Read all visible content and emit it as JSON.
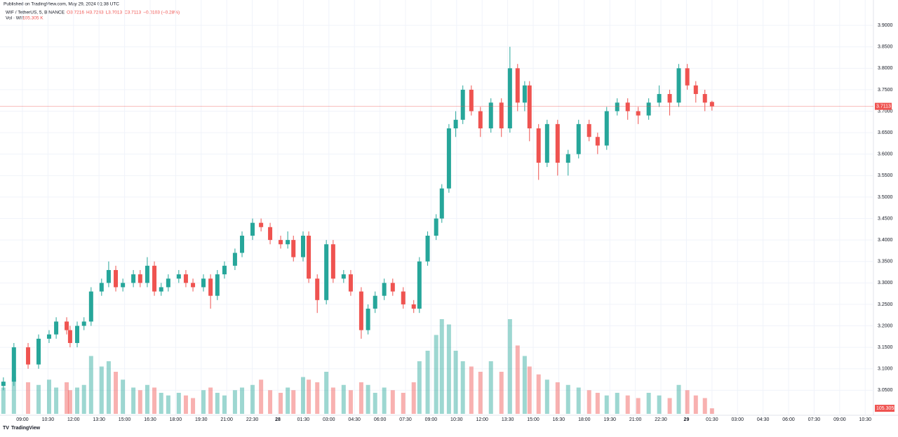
{
  "published": "Published on TradingView.com, May 29, 2024 01:38 UTC",
  "branding": "TradingView",
  "chart_data": {
    "type": "candlestick",
    "symbol": "WIF / TetherUS, 5, BINANCE",
    "ohlc_legend": [
      "O3.7216",
      "H3.7243",
      "L3.7013",
      "C3.7113",
      "−0.0103 (−0.28%)"
    ],
    "volume_title": "Vol · WIF",
    "volume_legend": "105.305 K",
    "up_color": "#26a69a",
    "down_color": "#ef5350",
    "grid": true,
    "x": [
      473,
      510,
      560,
      597,
      634,
      659,
      696,
      708,
      733,
      757,
      782,
      819,
      844,
      869,
      894,
      931,
      955,
      980,
      1005,
      1029,
      1054,
      1091,
      1116,
      1141,
      1178,
      1203,
      1227,
      1252,
      1289,
      1314,
      1351,
      1381,
      1413,
      1450,
      1475,
      1495,
      1529,
      1549,
      1579,
      1611,
      1635,
      1672,
      1697,
      1734,
      1758,
      1783,
      1815,
      1845,
      1882,
      1919,
      1939,
      1968,
      1998,
      2018,
      2043,
      2067,
      2092,
      2122,
      2154,
      2191,
      2228,
      2258,
      2285,
      2310,
      2327,
      2359,
      2389,
      2426,
      2463,
      2500,
      2537,
      2567,
      2599,
      2636,
      2673,
      2710,
      2747,
      2784,
      2821,
      2853,
      2883,
      2913,
      2945,
      2970
    ],
    "open": [
      3.06,
      3.07,
      3.15,
      3.11,
      3.17,
      3.18,
      3.21,
      3.19,
      3.16,
      3.2,
      3.21,
      3.28,
      3.3,
      3.33,
      3.29,
      3.3,
      3.32,
      3.3,
      3.34,
      3.28,
      3.29,
      3.31,
      3.32,
      3.3,
      3.29,
      3.31,
      3.27,
      3.32,
      3.34,
      3.37,
      3.41,
      3.44,
      3.43,
      3.4,
      3.39,
      3.4,
      3.36,
      3.41,
      3.31,
      3.26,
      3.39,
      3.31,
      3.32,
      3.28,
      3.19,
      3.24,
      3.27,
      3.3,
      3.28,
      3.25,
      3.24,
      3.35,
      3.41,
      3.45,
      3.52,
      3.66,
      3.68,
      3.75,
      3.7,
      3.66,
      3.72,
      3.66,
      3.8,
      3.72,
      3.76,
      3.66,
      3.58,
      3.67,
      3.58,
      3.6,
      3.67,
      3.64,
      3.62,
      3.7,
      3.72,
      3.7,
      3.69,
      3.72,
      3.74,
      3.72,
      3.8,
      3.76,
      3.74,
      3.7216
    ],
    "high": [
      3.08,
      3.16,
      3.16,
      3.18,
      3.19,
      3.22,
      3.22,
      3.2,
      3.21,
      3.22,
      3.29,
      3.31,
      3.35,
      3.34,
      3.31,
      3.33,
      3.33,
      3.36,
      3.35,
      3.3,
      3.32,
      3.33,
      3.33,
      3.31,
      3.32,
      3.32,
      3.33,
      3.35,
      3.38,
      3.42,
      3.45,
      3.45,
      3.44,
      3.41,
      3.42,
      3.41,
      3.42,
      3.42,
      3.32,
      3.4,
      3.4,
      3.33,
      3.33,
      3.29,
      3.25,
      3.28,
      3.31,
      3.31,
      3.29,
      3.26,
      3.36,
      3.42,
      3.46,
      3.53,
      3.67,
      3.7,
      3.76,
      3.76,
      3.71,
      3.73,
      3.73,
      3.85,
      3.81,
      3.77,
      3.77,
      3.67,
      3.68,
      3.68,
      3.61,
      3.68,
      3.68,
      3.65,
      3.71,
      3.73,
      3.73,
      3.71,
      3.73,
      3.76,
      3.75,
      3.81,
      3.81,
      3.77,
      3.75,
      3.7243
    ],
    "low": [
      3.05,
      3.06,
      3.1,
      3.1,
      3.16,
      3.17,
      3.18,
      3.15,
      3.15,
      3.19,
      3.2,
      3.27,
      3.29,
      3.28,
      3.28,
      3.29,
      3.29,
      3.29,
      3.27,
      3.27,
      3.28,
      3.3,
      3.29,
      3.28,
      3.28,
      3.24,
      3.26,
      3.31,
      3.33,
      3.36,
      3.4,
      3.42,
      3.39,
      3.38,
      3.38,
      3.35,
      3.35,
      3.3,
      3.23,
      3.25,
      3.3,
      3.3,
      3.27,
      3.17,
      3.18,
      3.23,
      3.26,
      3.27,
      3.24,
      3.23,
      3.23,
      3.34,
      3.4,
      3.44,
      3.51,
      3.64,
      3.67,
      3.69,
      3.64,
      3.65,
      3.64,
      3.65,
      3.7,
      3.7,
      3.63,
      3.54,
      3.57,
      3.55,
      3.55,
      3.59,
      3.63,
      3.6,
      3.61,
      3.69,
      3.68,
      3.67,
      3.68,
      3.71,
      3.69,
      3.71,
      3.75,
      3.72,
      3.7,
      3.7013
    ],
    "close": [
      3.07,
      3.15,
      3.11,
      3.17,
      3.18,
      3.21,
      3.19,
      3.16,
      3.2,
      3.21,
      3.28,
      3.3,
      3.33,
      3.29,
      3.3,
      3.32,
      3.3,
      3.34,
      3.28,
      3.29,
      3.31,
      3.32,
      3.3,
      3.29,
      3.31,
      3.27,
      3.32,
      3.34,
      3.37,
      3.41,
      3.44,
      3.43,
      3.4,
      3.39,
      3.4,
      3.36,
      3.41,
      3.31,
      3.26,
      3.39,
      3.31,
      3.32,
      3.28,
      3.19,
      3.24,
      3.27,
      3.3,
      3.28,
      3.25,
      3.24,
      3.35,
      3.41,
      3.45,
      3.52,
      3.66,
      3.68,
      3.75,
      3.7,
      3.66,
      3.72,
      3.66,
      3.8,
      3.72,
      3.76,
      3.66,
      3.58,
      3.67,
      3.58,
      3.6,
      3.67,
      3.64,
      3.62,
      3.7,
      3.72,
      3.7,
      3.69,
      3.72,
      3.74,
      3.72,
      3.8,
      3.76,
      3.74,
      3.72,
      3.7113
    ],
    "volume": [
      500000,
      700000,
      600000,
      550000,
      650000,
      500000,
      600000,
      450000,
      500000,
      550000,
      1100000,
      900000,
      1000000,
      800000,
      650000,
      500000,
      450000,
      550000,
      500000,
      400000,
      350000,
      400000,
      350000,
      300000,
      450000,
      500000,
      400000,
      350000,
      450000,
      500000,
      550000,
      650000,
      450000,
      400000,
      500000,
      450000,
      700000,
      650000,
      600000,
      800000,
      500000,
      550000,
      450000,
      600000,
      550000,
      400000,
      500000,
      450000,
      400000,
      600000,
      1000000,
      1200000,
      1500000,
      1800000,
      1700000,
      1200000,
      1000000,
      900000,
      800000,
      1000000,
      800000,
      1800000,
      1300000,
      1100000,
      900000,
      750000,
      650000,
      600000,
      550000,
      500000,
      450000,
      400000,
      350000,
      400000,
      350000,
      300000,
      400000,
      350000,
      300000,
      550000,
      450000,
      350000,
      300000,
      105305
    ],
    "volume_label": {
      "value": 105305,
      "label": "105.305K"
    },
    "last_price": 3.7113,
    "xlim": [
      461,
      3539
    ],
    "ylim": [
      2.995,
      3.959
    ],
    "vlim": [
      0,
      2000000
    ],
    "xticks": [
      {
        "value": 540,
        "label": "09:00"
      },
      {
        "value": 630,
        "label": "10:30"
      },
      {
        "value": 720,
        "label": "12:00"
      },
      {
        "value": 810,
        "label": "13:30"
      },
      {
        "value": 900,
        "label": "15:00"
      },
      {
        "value": 990,
        "label": "16:30"
      },
      {
        "value": 1080,
        "label": "18:00"
      },
      {
        "value": 1170,
        "label": "19:30"
      },
      {
        "value": 1260,
        "label": "21:00"
      },
      {
        "value": 1350,
        "label": "22:30"
      },
      {
        "value": 1440,
        "label": "28"
      },
      {
        "value": 1530,
        "label": "01:30"
      },
      {
        "value": 1620,
        "label": "03:00"
      },
      {
        "value": 1710,
        "label": "04:30"
      },
      {
        "value": 1800,
        "label": "06:00"
      },
      {
        "value": 1890,
        "label": "07:30"
      },
      {
        "value": 1980,
        "label": "09:00"
      },
      {
        "value": 2070,
        "label": "10:30"
      },
      {
        "value": 2160,
        "label": "12:00"
      },
      {
        "value": 2250,
        "label": "13:30"
      },
      {
        "value": 2340,
        "label": "15:00"
      },
      {
        "value": 2430,
        "label": "16:30"
      },
      {
        "value": 2520,
        "label": "18:00"
      },
      {
        "value": 2610,
        "label": "19:30"
      },
      {
        "value": 2700,
        "label": "21:00"
      },
      {
        "value": 2790,
        "label": "22:30"
      },
      {
        "value": 2880,
        "label": "29"
      },
      {
        "value": 2970,
        "label": "01:30"
      },
      {
        "value": 3060,
        "label": "03:00"
      },
      {
        "value": 3150,
        "label": "04:30"
      },
      {
        "value": 3240,
        "label": "06:00"
      },
      {
        "value": 3330,
        "label": "07:30"
      },
      {
        "value": 3420,
        "label": "09:00"
      },
      {
        "value": 3510,
        "label": "10:30"
      }
    ],
    "yticks": [
      {
        "value": 3.05,
        "label": "3.0500"
      },
      {
        "value": 3.1,
        "label": "3.1000"
      },
      {
        "value": 3.15,
        "label": "3.1500"
      },
      {
        "value": 3.2,
        "label": "3.2000"
      },
      {
        "value": 3.25,
        "label": "3.2500"
      },
      {
        "value": 3.3,
        "label": "3.3000"
      },
      {
        "value": 3.35,
        "label": "3.3500"
      },
      {
        "value": 3.4,
        "label": "3.4000"
      },
      {
        "value": 3.45,
        "label": "3.4500"
      },
      {
        "value": 3.5,
        "label": "3.5000"
      },
      {
        "value": 3.55,
        "label": "3.5500"
      },
      {
        "value": 3.6,
        "label": "3.6000"
      },
      {
        "value": 3.65,
        "label": "3.6500"
      },
      {
        "value": 3.7,
        "label": "3.7000"
      },
      {
        "value": 3.75,
        "label": "3.7500"
      },
      {
        "value": 3.8,
        "label": "3.8000"
      },
      {
        "value": 3.85,
        "label": "3.8500"
      },
      {
        "value": 3.9,
        "label": "3.9000"
      }
    ]
  }
}
